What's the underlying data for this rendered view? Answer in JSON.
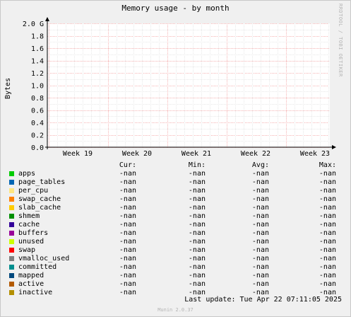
{
  "chart_data": {
    "type": "area",
    "title": "Memory usage - by month",
    "ylabel": "Bytes",
    "ylim": [
      0.0,
      2.0
    ],
    "yticks": [
      0.0,
      0.2,
      0.4,
      0.6,
      0.8,
      1.0,
      1.2,
      1.4,
      1.6,
      1.8,
      2.0
    ],
    "ytick_labels": [
      "0.0",
      "0.2",
      "0.4",
      "0.6",
      "0.8",
      "1.0",
      "1.2",
      "1.4",
      "1.6",
      "1.8",
      "2.0 G"
    ],
    "xticks": [
      "Week 19",
      "Week 20",
      "Week 21",
      "Week 22",
      "Week 23"
    ],
    "grid": true,
    "series": [
      {
        "name": "apps",
        "color": "#00cc00",
        "cur": "-nan",
        "min": "-nan",
        "avg": "-nan",
        "max": "-nan"
      },
      {
        "name": "page_tables",
        "color": "#0066b3",
        "cur": "-nan",
        "min": "-nan",
        "avg": "-nan",
        "max": "-nan"
      },
      {
        "name": "per_cpu",
        "color": "#ffe680",
        "cur": "-nan",
        "min": "-nan",
        "avg": "-nan",
        "max": "-nan"
      },
      {
        "name": "swap_cache",
        "color": "#ff8000",
        "cur": "-nan",
        "min": "-nan",
        "avg": "-nan",
        "max": "-nan"
      },
      {
        "name": "slab_cache",
        "color": "#ffcc00",
        "cur": "-nan",
        "min": "-nan",
        "avg": "-nan",
        "max": "-nan"
      },
      {
        "name": "shmem",
        "color": "#008f00",
        "cur": "-nan",
        "min": "-nan",
        "avg": "-nan",
        "max": "-nan"
      },
      {
        "name": "cache",
        "color": "#330099",
        "cur": "-nan",
        "min": "-nan",
        "avg": "-nan",
        "max": "-nan"
      },
      {
        "name": "buffers",
        "color": "#990099",
        "cur": "-nan",
        "min": "-nan",
        "avg": "-nan",
        "max": "-nan"
      },
      {
        "name": "unused",
        "color": "#ccff00",
        "cur": "-nan",
        "min": "-nan",
        "avg": "-nan",
        "max": "-nan"
      },
      {
        "name": "swap",
        "color": "#ff0000",
        "cur": "-nan",
        "min": "-nan",
        "avg": "-nan",
        "max": "-nan"
      },
      {
        "name": "vmalloc_used",
        "color": "#808080",
        "cur": "-nan",
        "min": "-nan",
        "avg": "-nan",
        "max": "-nan"
      },
      {
        "name": "committed",
        "color": "#008f8f",
        "cur": "-nan",
        "min": "-nan",
        "avg": "-nan",
        "max": "-nan"
      },
      {
        "name": "mapped",
        "color": "#00487d",
        "cur": "-nan",
        "min": "-nan",
        "avg": "-nan",
        "max": "-nan"
      },
      {
        "name": "active",
        "color": "#b35a00",
        "cur": "-nan",
        "min": "-nan",
        "avg": "-nan",
        "max": "-nan"
      },
      {
        "name": "inactive",
        "color": "#b38f00",
        "cur": "-nan",
        "min": "-nan",
        "avg": "-nan",
        "max": "-nan"
      }
    ]
  },
  "legend": {
    "headers": {
      "cur": "Cur:",
      "min": "Min:",
      "avg": "Avg:",
      "max": "Max:"
    }
  },
  "side_text": "RRDTOOL / TOBI OETIKER",
  "last_update": "Last update: Tue Apr 22 07:11:05 2025",
  "footer": "Munin 2.0.37"
}
